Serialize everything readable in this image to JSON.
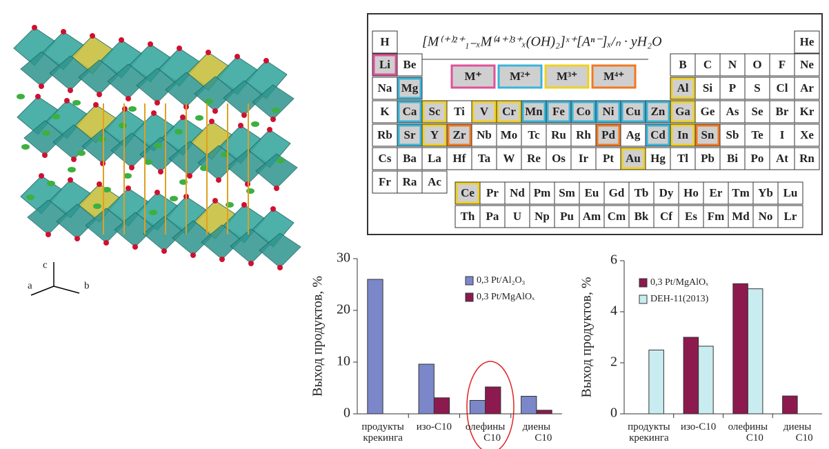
{
  "structure": {
    "axes": [
      "a",
      "b",
      "c"
    ]
  },
  "periodic_table": {
    "formula": "[M⁽⁺⁾²⁺₁₋ₓM⁽⁴⁺⁾³⁺ₓ(OH)₂]ˣ⁺[Aⁿ⁻]ₓ/ₙ · yH₂O",
    "legend": [
      {
        "label": "M⁺",
        "color": "#e0509a"
      },
      {
        "label": "M²⁺",
        "color": "#3ab4d8"
      },
      {
        "label": "M³⁺",
        "color": "#f0d020"
      },
      {
        "label": "M⁴⁺",
        "color": "#f07820"
      }
    ],
    "rows": [
      [
        "H",
        null,
        null,
        null,
        null,
        null,
        null,
        null,
        null,
        null,
        null,
        null,
        null,
        null,
        null,
        null,
        null,
        "He"
      ],
      [
        "Li",
        "Be",
        null,
        null,
        null,
        null,
        null,
        null,
        null,
        null,
        null,
        null,
        "B",
        "C",
        "N",
        "O",
        "F",
        "Ne"
      ],
      [
        "Na",
        "Mg",
        null,
        null,
        null,
        null,
        null,
        null,
        null,
        null,
        null,
        null,
        "Al",
        "Si",
        "P",
        "S",
        "Cl",
        "Ar"
      ],
      [
        "K",
        "Ca",
        "Sc",
        "Ti",
        "V",
        "Cr",
        "Mn",
        "Fe",
        "Co",
        "Ni",
        "Cu",
        "Zn",
        "Ga",
        "Ge",
        "As",
        "Se",
        "Br",
        "Kr"
      ],
      [
        "Rb",
        "Sr",
        "Y",
        "Zr",
        "Nb",
        "Mo",
        "Tc",
        "Ru",
        "Rh",
        "Pd",
        "Ag",
        "Cd",
        "In",
        "Sn",
        "Sb",
        "Te",
        "I",
        "Xe"
      ],
      [
        "Cs",
        "Ba",
        "La",
        "Hf",
        "Ta",
        "W",
        "Re",
        "Os",
        "Ir",
        "Pt",
        "Au",
        "Hg",
        "Tl",
        "Pb",
        "Bi",
        "Po",
        "At",
        "Rn"
      ],
      [
        "Fr",
        "Ra",
        "Ac"
      ]
    ],
    "lanthanides": [
      "Ce",
      "Pr",
      "Nd",
      "Pm",
      "Sm",
      "Eu",
      "Gd",
      "Tb",
      "Dy",
      "Ho",
      "Er",
      "Tm",
      "Yb",
      "Lu"
    ],
    "actinides": [
      "Th",
      "Pa",
      "U",
      "Np",
      "Pu",
      "Am",
      "Cm",
      "Bk",
      "Cf",
      "Es",
      "Fm",
      "Md",
      "No",
      "Lr"
    ],
    "highlights": {
      "Li": "#e0509a",
      "Mg": "#3ab4d8",
      "Ca": "#3ab4d8",
      "Sr": "#3ab4d8",
      "Mn": "#3ab4d8",
      "Fe": "#3ab4d8",
      "Co": "#3ab4d8",
      "Ni": "#3ab4d8",
      "Cu": "#3ab4d8",
      "Zn": "#3ab4d8",
      "Cd": "#3ab4d8",
      "Sc": "#f0d020",
      "Y": "#f0d020",
      "V": "#f0d020",
      "Cr": "#f0d020",
      "Al": "#f0d020",
      "Ga": "#f0d020",
      "In": "#f0d020",
      "Au": "#f0d020",
      "Ce": "#f0d020",
      "Zr": "#f07820",
      "Pd": "#f07820",
      "Sn": "#f07820"
    }
  },
  "chart_data": [
    {
      "type": "bar",
      "y_label": "Выход продуктов, %",
      "categories": [
        "продукты крекинга",
        "изо-С10",
        "олефины С10",
        "диены С10"
      ],
      "series": [
        {
          "name": "0,3 Pt/Al₂O₃",
          "color": "#7b87c9",
          "values": [
            26,
            9.6,
            2.6,
            3.4
          ]
        },
        {
          "name": "0,3 Pt/MgAlOₓ",
          "color": "#8c1a4e",
          "values": [
            null,
            3.1,
            5.2,
            0.7
          ]
        }
      ],
      "ylim": [
        0,
        30
      ],
      "yticks": [
        0,
        10,
        20,
        30
      ],
      "legend": "upper right"
    },
    {
      "type": "bar",
      "y_label": "Выход продуктов, %",
      "categories": [
        "продукты крекинга",
        "изо-С10",
        "олефины С10",
        "диены С10"
      ],
      "series": [
        {
          "name": "0,3 Pt/MgAlOₓ",
          "color": "#8c1a4e",
          "values": [
            null,
            3.0,
            5.1,
            0.7
          ]
        },
        {
          "name": "DEH-11(2013)",
          "color": "#c8ecf0",
          "values": [
            2.5,
            2.65,
            4.9,
            null
          ]
        }
      ],
      "ylim": [
        0,
        6
      ],
      "yticks": [
        0,
        2,
        4,
        6
      ],
      "legend": "upper left"
    }
  ]
}
